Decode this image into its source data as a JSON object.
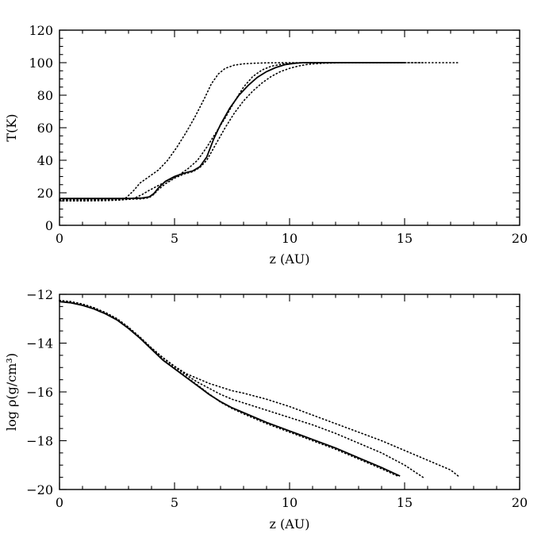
{
  "chart_data": [
    {
      "type": "line",
      "xlabel": "z (AU)",
      "ylabel": "T(K)",
      "xlim": [
        0,
        20
      ],
      "ylim": [
        0,
        120
      ],
      "xticks": [
        0,
        5,
        10,
        15,
        20
      ],
      "xtick_labels": [
        "0",
        "5",
        "10",
        "15",
        "20"
      ],
      "yticks": [
        0,
        20,
        40,
        60,
        80,
        100,
        120
      ],
      "ytick_labels": [
        "0",
        "20",
        "40",
        "60",
        "80",
        "100",
        "120"
      ],
      "grid": false,
      "series": [
        {
          "style": "solid",
          "points": [
            [
              0,
              16.5
            ],
            [
              1,
              16.5
            ],
            [
              2,
              16.5
            ],
            [
              3,
              16.5
            ],
            [
              3.6,
              16.8
            ],
            [
              3.9,
              17.5
            ],
            [
              4.1,
              19.5
            ],
            [
              4.3,
              23
            ],
            [
              4.6,
              27
            ],
            [
              5,
              30
            ],
            [
              5.4,
              32
            ],
            [
              5.8,
              33.5
            ],
            [
              6.1,
              36
            ],
            [
              6.4,
              42
            ],
            [
              6.7,
              53
            ],
            [
              7,
              62
            ],
            [
              7.4,
              72
            ],
            [
              7.8,
              80
            ],
            [
              8.2,
              86
            ],
            [
              8.6,
              91
            ],
            [
              9,
              94.5
            ],
            [
              9.4,
              97
            ],
            [
              9.8,
              98.8
            ],
            [
              10.2,
              99.6
            ],
            [
              10.6,
              100
            ],
            [
              11,
              100
            ],
            [
              12,
              100
            ],
            [
              13,
              100
            ],
            [
              14,
              100
            ],
            [
              15,
              100
            ]
          ]
        },
        {
          "style": "dotted",
          "points": [
            [
              0,
              15.5
            ],
            [
              1,
              15.5
            ],
            [
              2,
              15.6
            ],
            [
              2.6,
              16
            ],
            [
              2.9,
              17
            ],
            [
              3.2,
              21
            ],
            [
              3.5,
              26
            ],
            [
              3.9,
              30
            ],
            [
              4.3,
              34
            ],
            [
              4.7,
              40
            ],
            [
              5.1,
              48
            ],
            [
              5.5,
              57
            ],
            [
              5.9,
              67
            ],
            [
              6.3,
              78
            ],
            [
              6.6,
              87
            ],
            [
              6.9,
              93
            ],
            [
              7.2,
              96.5
            ],
            [
              7.6,
              98.5
            ],
            [
              8,
              99.3
            ],
            [
              8.5,
              99.7
            ],
            [
              9,
              99.9
            ],
            [
              10,
              100
            ],
            [
              11,
              100
            ],
            [
              12,
              100
            ],
            [
              13,
              100
            ],
            [
              14,
              100
            ],
            [
              15,
              100
            ],
            [
              16,
              100
            ],
            [
              17.4,
              100
            ]
          ]
        },
        {
          "style": "dotted",
          "points": [
            [
              0,
              15
            ],
            [
              1,
              15
            ],
            [
              2,
              15.2
            ],
            [
              2.6,
              15.5
            ],
            [
              3,
              16
            ],
            [
              3.3,
              17
            ],
            [
              3.6,
              19
            ],
            [
              3.9,
              21.5
            ],
            [
              4.3,
              24.5
            ],
            [
              4.8,
              28
            ],
            [
              5.2,
              31
            ],
            [
              5.6,
              35
            ],
            [
              6,
              40
            ],
            [
              6.4,
              48
            ],
            [
              6.8,
              57
            ],
            [
              7.2,
              66
            ],
            [
              7.6,
              76
            ],
            [
              8,
              85
            ],
            [
              8.4,
              91.5
            ],
            [
              8.8,
              95.5
            ],
            [
              9.2,
              97.8
            ],
            [
              9.7,
              99.2
            ],
            [
              10.2,
              99.8
            ],
            [
              11,
              100
            ],
            [
              12,
              100
            ],
            [
              13,
              100
            ],
            [
              14,
              100
            ],
            [
              15,
              100
            ],
            [
              15.8,
              100
            ]
          ]
        },
        {
          "style": "dotted",
          "points": [
            [
              0,
              16
            ],
            [
              1,
              16
            ],
            [
              2,
              16
            ],
            [
              3,
              16
            ],
            [
              3.6,
              16.3
            ],
            [
              3.9,
              17
            ],
            [
              4.1,
              19
            ],
            [
              4.3,
              22
            ],
            [
              4.6,
              25.5
            ],
            [
              5,
              29
            ],
            [
              5.4,
              31.5
            ],
            [
              5.8,
              33
            ],
            [
              6.1,
              35.5
            ],
            [
              6.4,
              40
            ],
            [
              6.8,
              50
            ],
            [
              7.2,
              60
            ],
            [
              7.6,
              69
            ],
            [
              8,
              76.5
            ],
            [
              8.4,
              82.5
            ],
            [
              8.8,
              87.5
            ],
            [
              9.2,
              91.5
            ],
            [
              9.6,
              94.5
            ],
            [
              10,
              96.5
            ],
            [
              10.4,
              98
            ],
            [
              10.8,
              99
            ],
            [
              11.5,
              99.7
            ],
            [
              12.5,
              100
            ],
            [
              13.5,
              100
            ],
            [
              15,
              100
            ]
          ]
        }
      ]
    },
    {
      "type": "line",
      "xlabel": "z (AU)",
      "ylabel": "log ρ(g/cm³)",
      "xlim": [
        0,
        20
      ],
      "ylim": [
        -20,
        -12
      ],
      "xticks": [
        0,
        5,
        10,
        15,
        20
      ],
      "xtick_labels": [
        "0",
        "5",
        "10",
        "15",
        "20"
      ],
      "yticks": [
        -20,
        -18,
        -16,
        -14,
        -12
      ],
      "ytick_labels": [
        "−20",
        "−18",
        "−16",
        "−14",
        "−12"
      ],
      "grid": false,
      "series": [
        {
          "style": "solid",
          "points": [
            [
              0,
              -12.3
            ],
            [
              0.5,
              -12.35
            ],
            [
              1,
              -12.45
            ],
            [
              1.5,
              -12.6
            ],
            [
              2,
              -12.8
            ],
            [
              2.5,
              -13.05
            ],
            [
              3,
              -13.4
            ],
            [
              3.5,
              -13.8
            ],
            [
              4,
              -14.25
            ],
            [
              4.5,
              -14.7
            ],
            [
              5,
              -15.05
            ],
            [
              5.5,
              -15.4
            ],
            [
              6,
              -15.75
            ],
            [
              6.5,
              -16.1
            ],
            [
              7,
              -16.4
            ],
            [
              7.5,
              -16.65
            ],
            [
              8,
              -16.85
            ],
            [
              9,
              -17.25
            ],
            [
              10,
              -17.6
            ],
            [
              11,
              -17.95
            ],
            [
              12,
              -18.3
            ],
            [
              13,
              -18.7
            ],
            [
              14,
              -19.1
            ],
            [
              14.8,
              -19.45
            ]
          ]
        },
        {
          "style": "dotted",
          "points": [
            [
              0,
              -12.25
            ],
            [
              0.5,
              -12.3
            ],
            [
              1,
              -12.4
            ],
            [
              1.5,
              -12.55
            ],
            [
              2,
              -12.75
            ],
            [
              2.5,
              -13
            ],
            [
              3,
              -13.35
            ],
            [
              3.5,
              -13.8
            ],
            [
              4,
              -14.2
            ],
            [
              4.5,
              -14.6
            ],
            [
              5,
              -14.95
            ],
            [
              5.5,
              -15.25
            ],
            [
              6,
              -15.45
            ],
            [
              6.5,
              -15.65
            ],
            [
              7,
              -15.8
            ],
            [
              7.5,
              -15.95
            ],
            [
              8,
              -16.05
            ],
            [
              9,
              -16.3
            ],
            [
              10,
              -16.6
            ],
            [
              11,
              -16.95
            ],
            [
              12,
              -17.3
            ],
            [
              13,
              -17.65
            ],
            [
              14,
              -18
            ],
            [
              15,
              -18.4
            ],
            [
              16,
              -18.8
            ],
            [
              17,
              -19.2
            ],
            [
              17.4,
              -19.5
            ]
          ]
        },
        {
          "style": "dotted",
          "points": [
            [
              0,
              -12.25
            ],
            [
              0.5,
              -12.3
            ],
            [
              1,
              -12.4
            ],
            [
              1.5,
              -12.55
            ],
            [
              2,
              -12.75
            ],
            [
              2.5,
              -13
            ],
            [
              3,
              -13.35
            ],
            [
              3.5,
              -13.75
            ],
            [
              4,
              -14.2
            ],
            [
              4.5,
              -14.6
            ],
            [
              5,
              -14.95
            ],
            [
              5.5,
              -15.3
            ],
            [
              6,
              -15.6
            ],
            [
              6.5,
              -15.85
            ],
            [
              7,
              -16.1
            ],
            [
              7.5,
              -16.3
            ],
            [
              8,
              -16.45
            ],
            [
              9,
              -16.75
            ],
            [
              10,
              -17.05
            ],
            [
              11,
              -17.35
            ],
            [
              12,
              -17.7
            ],
            [
              13,
              -18.1
            ],
            [
              14,
              -18.5
            ],
            [
              15,
              -19
            ],
            [
              15.8,
              -19.5
            ]
          ]
        },
        {
          "style": "dotted",
          "points": [
            [
              0,
              -12.28
            ],
            [
              0.5,
              -12.33
            ],
            [
              1,
              -12.43
            ],
            [
              1.5,
              -12.58
            ],
            [
              2,
              -12.78
            ],
            [
              2.5,
              -13.03
            ],
            [
              3,
              -13.38
            ],
            [
              3.5,
              -13.78
            ],
            [
              4,
              -14.22
            ],
            [
              4.5,
              -14.68
            ],
            [
              5,
              -15.02
            ],
            [
              5.5,
              -15.38
            ],
            [
              6,
              -15.72
            ],
            [
              6.5,
              -16.08
            ],
            [
              7,
              -16.42
            ],
            [
              7.5,
              -16.68
            ],
            [
              8,
              -16.9
            ],
            [
              9,
              -17.3
            ],
            [
              10,
              -17.65
            ],
            [
              11,
              -18
            ],
            [
              12,
              -18.35
            ],
            [
              13,
              -18.75
            ],
            [
              14,
              -19.15
            ],
            [
              14.7,
              -19.45
            ]
          ]
        }
      ]
    }
  ]
}
